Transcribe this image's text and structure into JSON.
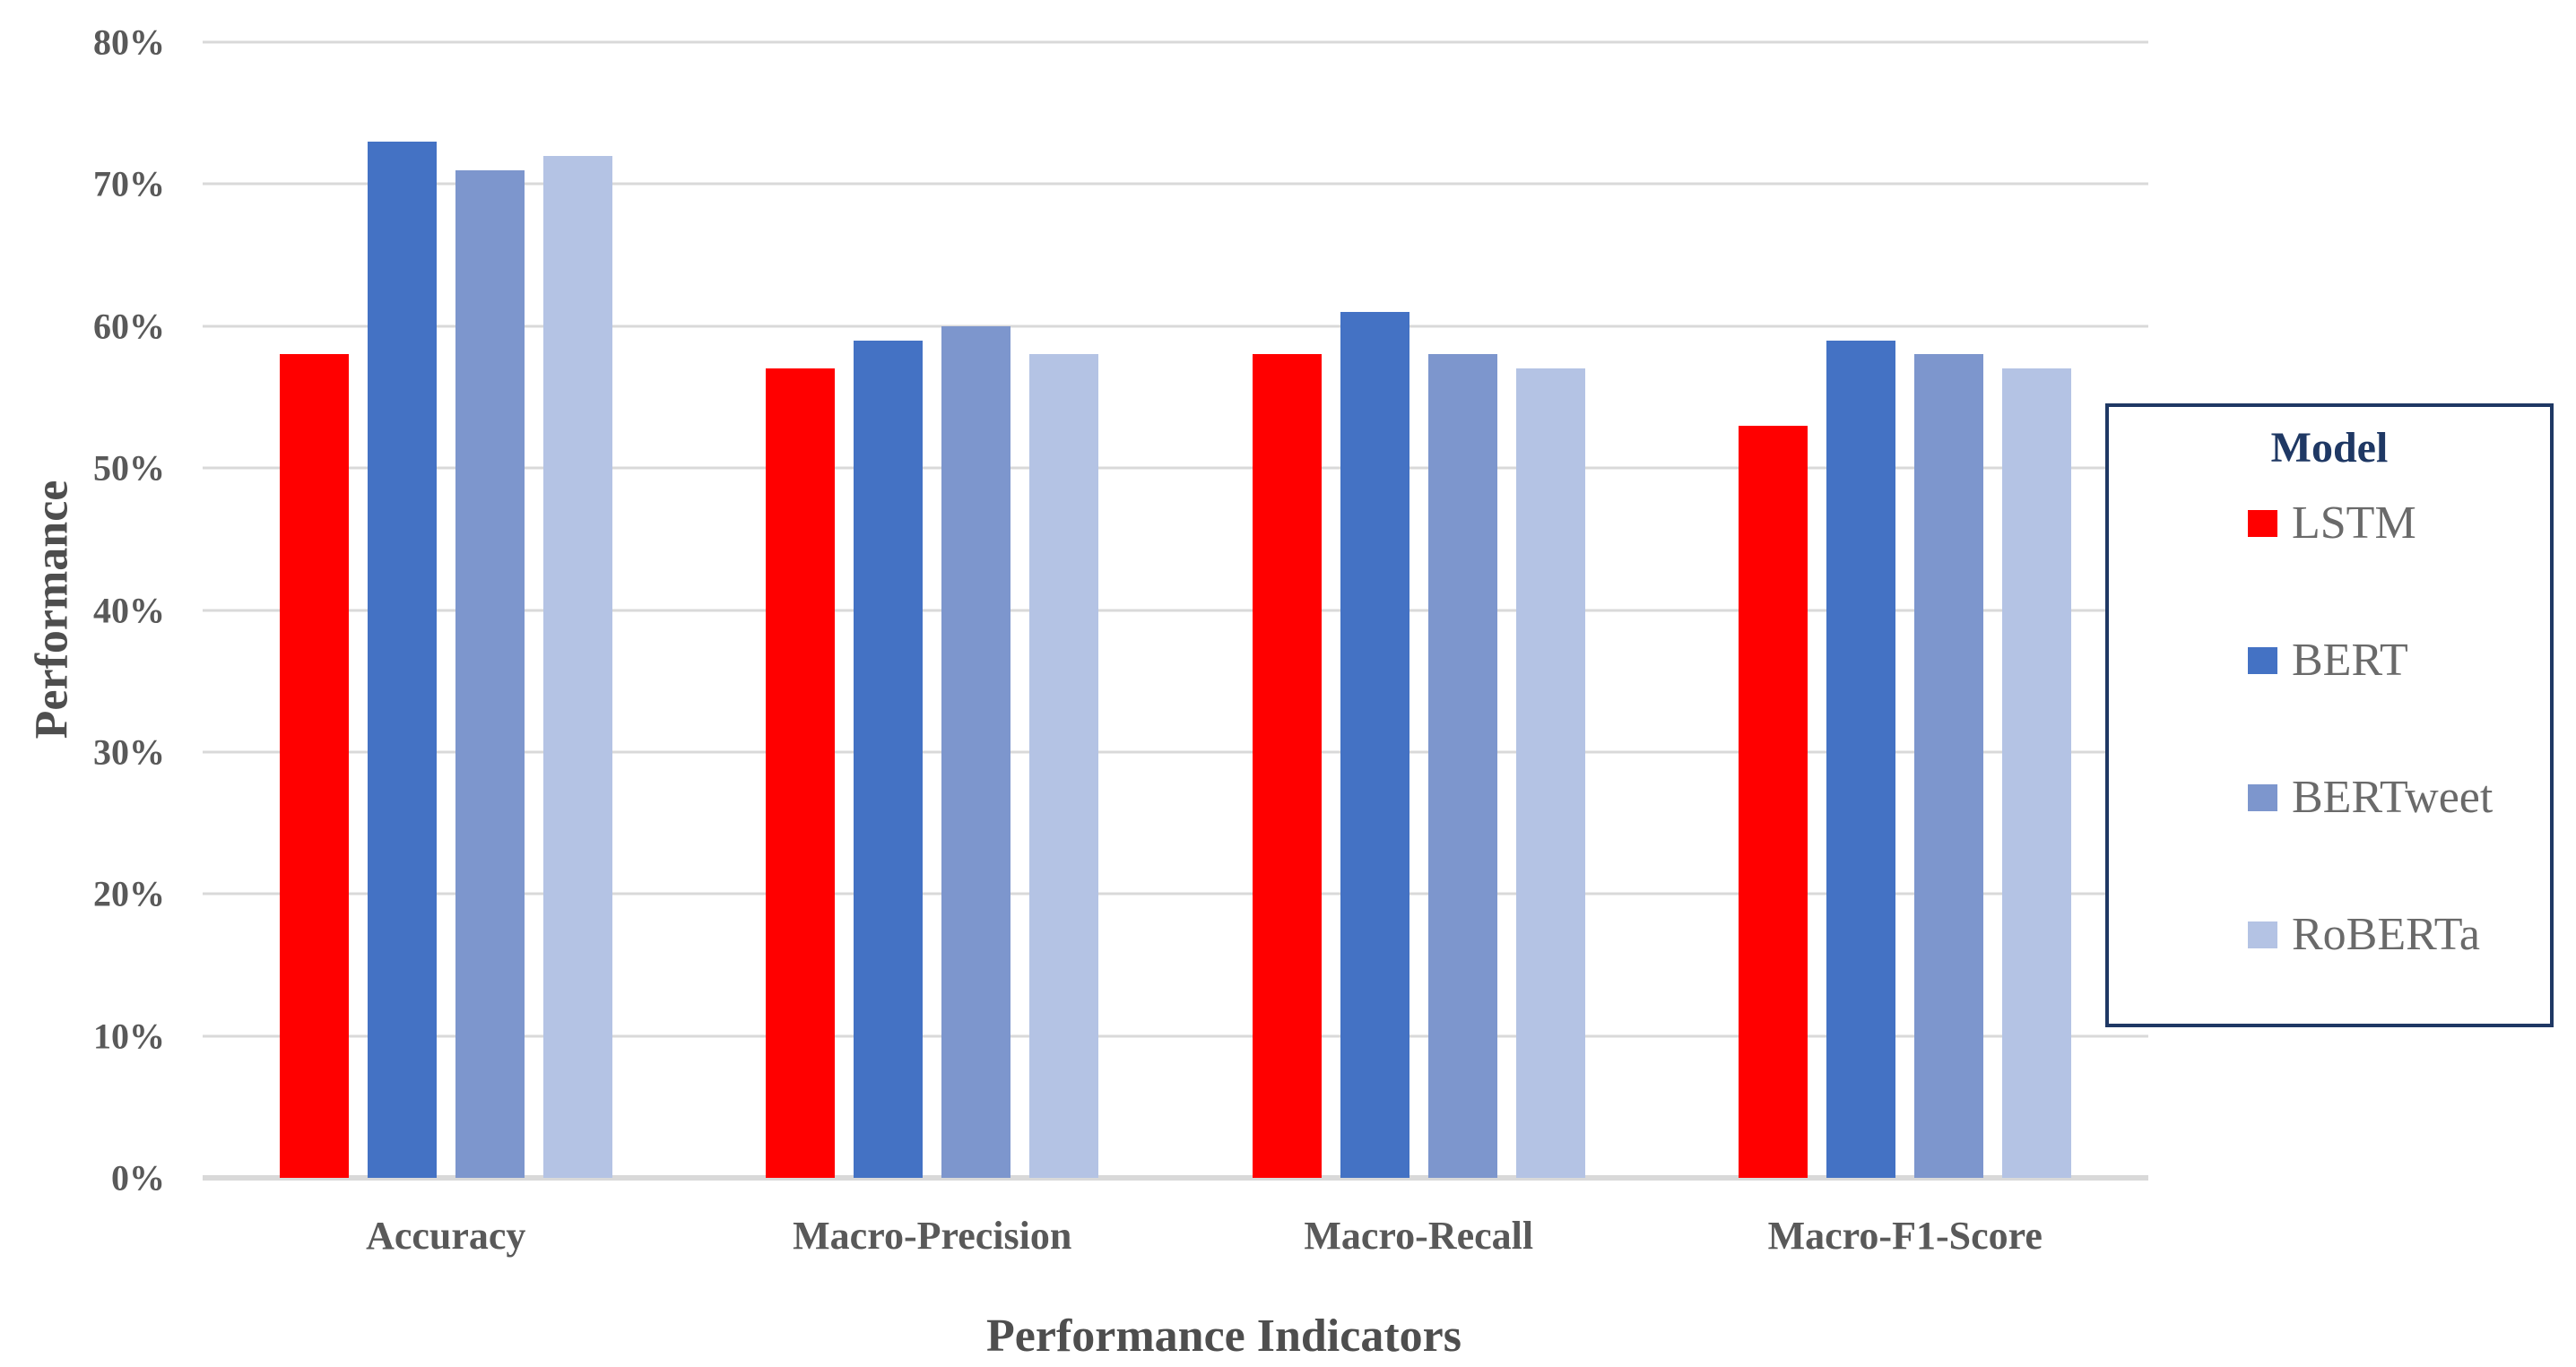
{
  "chart_data": {
    "type": "bar",
    "title": "",
    "categories": [
      "Accuracy",
      "Macro-Precision",
      "Macro-Recall",
      "Macro-F1-Score"
    ],
    "series": [
      {
        "name": "LSTM",
        "color": "#FF0000",
        "values": [
          58,
          57,
          58,
          53
        ]
      },
      {
        "name": "BERT",
        "color": "#4472C4",
        "values": [
          73,
          59,
          61,
          59
        ]
      },
      {
        "name": "BERTweet",
        "color": "#7D96CD",
        "values": [
          71,
          60,
          58,
          58
        ]
      },
      {
        "name": "RoBERTa",
        "color": "#B4C3E4",
        "values": [
          72,
          58,
          57,
          57
        ]
      }
    ],
    "xlabel": "Performance Indicators",
    "ylabel": "Performance",
    "ylim": [
      0,
      80
    ],
    "ytick_step": 10,
    "ytick_labels": [
      "0%",
      "10%",
      "20%",
      "30%",
      "40%",
      "50%",
      "60%",
      "70%",
      "80%"
    ],
    "grid": true,
    "legend": {
      "title": "Model",
      "position": "right",
      "entries": [
        "LSTM",
        "BERT",
        "BERTweet",
        "RoBERTa"
      ]
    }
  },
  "colors": {
    "gridline": "#D9D9D9",
    "axis_line": "#D9D9D9",
    "tick_label": "#595959",
    "category_label": "#595959",
    "axis_title": "#4E4E4E",
    "legend_border": "#1F3864",
    "legend_title": "#1F3864",
    "legend_text": "#6A6A6A",
    "background": "#FFFFFF"
  }
}
